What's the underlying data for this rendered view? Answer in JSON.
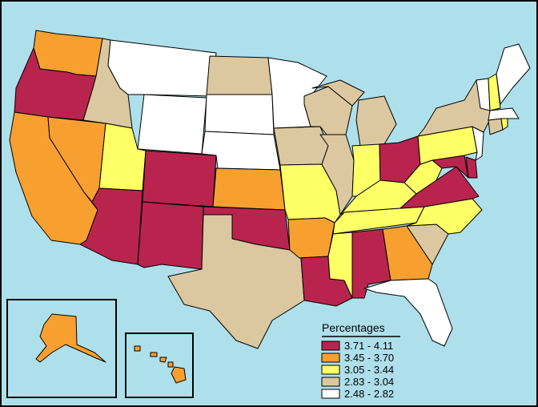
{
  "legend": {
    "title": "Percentages",
    "items": [
      {
        "label": "3.71 - 4.11",
        "color": "#b8244e"
      },
      {
        "label": "3.45 - 3.70",
        "color": "#f7a030"
      },
      {
        "label": "3.05 - 3.44",
        "color": "#ffff66"
      },
      {
        "label": "2.83 - 3.04",
        "color": "#dcc8a0"
      },
      {
        "label": "2.48 - 2.82",
        "color": "#ffffff"
      }
    ]
  },
  "colors": {
    "water": "#aee0ec",
    "border": "#000000"
  },
  "states": {
    "WA": 1,
    "OR": 0,
    "CA": 1,
    "NV": 1,
    "ID": 3,
    "MT": 4,
    "WY": 4,
    "UT": 2,
    "AZ": 0,
    "CO": 0,
    "NM": 0,
    "ND": 3,
    "SD": 4,
    "NE": 4,
    "KS": 1,
    "OK": 0,
    "TX": 3,
    "MN": 4,
    "IA": 3,
    "MO": 2,
    "AR": 1,
    "LA": 0,
    "WI": 3,
    "IL": 3,
    "MI": 3,
    "IN": 2,
    "OH": 0,
    "KY": 2,
    "TN": 2,
    "MS": 2,
    "AL": 0,
    "GA": 1,
    "FL": 4,
    "SC": 3,
    "NC": 2,
    "VA": 0,
    "WV": 2,
    "MD": 0,
    "DE": 0,
    "PA": 2,
    "NJ": 4,
    "NY": 3,
    "CT": 3,
    "RI": 2,
    "MA": 4,
    "VT": 4,
    "NH": 2,
    "ME": 4,
    "AK": 1,
    "HI": 1
  }
}
